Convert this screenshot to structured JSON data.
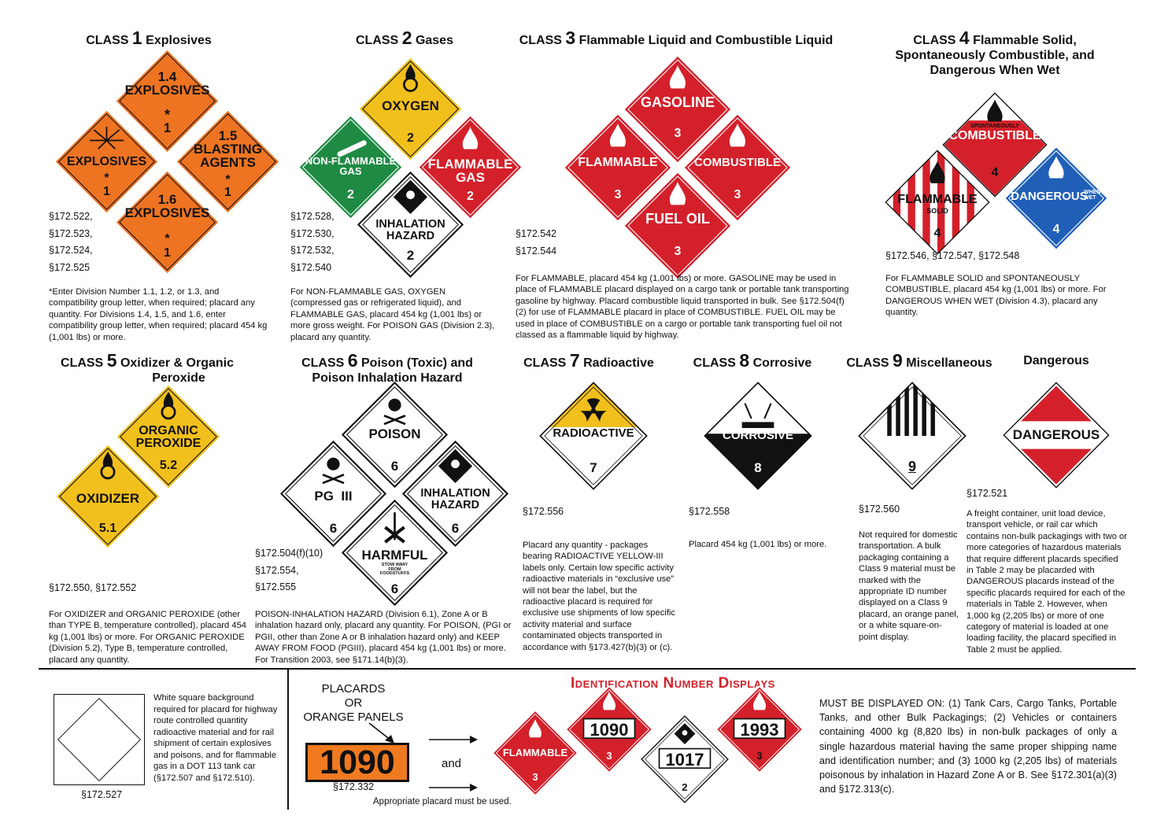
{
  "class1": {
    "title_a": "CLASS",
    "title_num": "1",
    "title_b": "Explosives",
    "placards": [
      {
        "label": "1.4\nEXPLOSIVES",
        "star": "*",
        "num": "1"
      },
      {
        "label": "EXPLOSIVES",
        "star": "*",
        "num": "1"
      },
      {
        "label": "1.5\nBLASTING\nAGENTS",
        "star": "*",
        "num": "1"
      },
      {
        "label": "1.6\nEXPLOSIVES",
        "star": "*",
        "num": "1"
      }
    ],
    "cites": [
      "§172.522,",
      "§172.523,",
      "§172.524,",
      "§172.525"
    ],
    "desc": "*Enter Division Number 1.1, 1.2, or 1.3, and compatibility group letter, when required; placard any quantity. For Divisions 1.4, 1.5, and 1.6, enter compatibility group letter, when required; placard 454 kg (1,001 lbs) or more."
  },
  "class2": {
    "title_a": "CLASS",
    "title_num": "2",
    "title_b": "Gases",
    "placards": [
      {
        "label": "OXYGEN",
        "num": "2"
      },
      {
        "label": "NON-FLAMMABLE\nGAS",
        "num": "2"
      },
      {
        "label": "FLAMMABLE\nGAS",
        "num": "2"
      },
      {
        "label": "INHALATION\nHAZARD",
        "num": "2"
      }
    ],
    "cites": [
      "§172.528,",
      "§172.530,",
      "§172.532,",
      "§172.540"
    ],
    "desc": "For NON-FLAMMABLE GAS, OXYGEN (compressed gas or refrigerated liquid), and FLAMMABLE GAS, placard 454 kg (1,001 lbs) or more gross weight. For POISON GAS (Division 2.3), placard any quantity."
  },
  "class3": {
    "title_a": "CLASS",
    "title_num": "3",
    "title_b": "Flammable Liquid and Combustible Liquid",
    "placards": [
      {
        "label": "GASOLINE",
        "num": "3"
      },
      {
        "label": "FLAMMABLE",
        "num": "3"
      },
      {
        "label": "COMBUSTIBLE",
        "num": "3"
      },
      {
        "label": "FUEL OIL",
        "num": "3"
      }
    ],
    "cites": [
      "§172.542",
      "§172.544"
    ],
    "desc": "For FLAMMABLE, placard 454 kg (1,001 lbs) or more. GASOLINE may be used in place of FLAMMABLE placard displayed on a cargo tank or portable tank transporting gasoline by highway. Placard combustible liquid transported in bulk. See §172.504(f)(2) for use of FLAMMABLE placard in place of COMBUSTIBLE. FUEL OIL may be used in place of COMBUSTIBLE on a cargo or portable tank transporting fuel oil not classed as a flammable liquid by highway."
  },
  "class4": {
    "title_a": "CLASS",
    "title_num": "4",
    "title_b": "Flammable Solid,",
    "title_c": "Spontaneously Combustible, and",
    "title_d": "Dangerous When Wet",
    "placards": [
      {
        "label_small": "SPONTANEOUSLY",
        "label": "COMBUSTIBLE",
        "num": "4"
      },
      {
        "label": "FLAMMABLE",
        "label_small": "SOLID",
        "num": "4"
      },
      {
        "label": "DANGEROUS",
        "label_small": "WHEN WET",
        "num": "4"
      }
    ],
    "cites": [
      "§172.546, §172.547, §172.548"
    ],
    "desc": "For FLAMMABLE SOLID and SPONTANEOUSLY COMBUSTIBLE, placard 454 kg (1,001 lbs) or more. For DANGEROUS WHEN WET (Division 4.3), placard any quantity."
  },
  "class5": {
    "title_a": "CLASS",
    "title_num": "5",
    "title_b": "Oxidizer & Organic",
    "title_c": "Peroxide",
    "placards": [
      {
        "label": "ORGANIC\nPEROXIDE",
        "num": "5.2"
      },
      {
        "label": "OXIDIZER",
        "num": "5.1"
      }
    ],
    "cites": [
      "§172.550, §172.552"
    ],
    "desc": "For OXIDIZER and ORGANIC PEROXIDE (other than TYPE B, temperature controlled), placard 454 kg (1,001 lbs) or more. For ORGANIC PEROXIDE (Division 5.2), Type B, temperature controlled, placard any quantity."
  },
  "class6": {
    "title_a": "CLASS",
    "title_num": "6",
    "title_b": "Poison (Toxic) and",
    "title_c": "Poison Inhalation Hazard",
    "placards": [
      {
        "label": "POISON",
        "num": "6"
      },
      {
        "label": "PG  III",
        "num": "6"
      },
      {
        "label": "INHALATION\nHAZARD",
        "num": "6"
      },
      {
        "label": "HARMFUL",
        "label_small": "STOW AWAY\nFROM\nFOODSTUFFS",
        "num": "6"
      }
    ],
    "cites": [
      "§172.504(f)(10)",
      "§172.554,",
      "§172.555"
    ],
    "desc": "POISON-INHALATION HAZARD (Division 6.1), Zone A or B inhalation hazard only, placard any quantity. For POISON, (PGI or PGII, other than Zone A or B inhalation hazard only) and KEEP AWAY FROM FOOD (PGIII), placard 454 kg (1,001 lbs) or more. For Transition 2003, see §171.14(b)(3)."
  },
  "class7": {
    "title_a": "CLASS",
    "title_num": "7",
    "title_b": "Radioactive",
    "placards": [
      {
        "label": "RADIOACTIVE",
        "num": "7"
      }
    ],
    "cites": [
      "§172.556"
    ],
    "desc": "Placard any quantity - packages bearing RADIOACTIVE YELLOW-III labels only. Certain low specific activity radioactive materials in “exclusive use” will not bear the label, but the radioactive placard is required for exclusive use shipments of low specific activity material and surface contaminated objects transported in accordance with §173.427(b)(3) or (c)."
  },
  "class8": {
    "title_a": "CLASS",
    "title_num": "8",
    "title_b": "Corrosive",
    "placards": [
      {
        "label": "CORROSIVE",
        "num": "8"
      }
    ],
    "cites": [
      "§172.558"
    ],
    "desc": "Placard 454 kg (1,001 lbs) or more."
  },
  "class9": {
    "title_a": "CLASS",
    "title_num": "9",
    "title_b": "Miscellaneous",
    "placards": [
      {
        "label": "",
        "num": "9"
      }
    ],
    "cites": [
      "§172.560"
    ],
    "desc": "Not required for domestic transportation. A bulk packaging containing a Class 9 material must be marked with the appropriate ID number displayed on a Class 9 placard, an orange panel, or a white square-on-point display."
  },
  "dangerous": {
    "title": "Dangerous",
    "placards": [
      {
        "label": "DANGEROUS"
      }
    ],
    "cites": [
      "§172.521"
    ],
    "desc": "A freight container, unit load device, transport vehicle, or rail car which contains non-bulk packagings with two or more categories of hazardous materials that require different placards specified in Table 2 may be placarded with DANGEROUS placards instead of the specific placards required for each of the materials in Table 2. However, when 1,000 kg (2,205 lbs) or more of one category of material is loaded at one loading facility, the placard specified in Table 2 must be applied."
  },
  "white_square": {
    "desc": "White square background required for placard for highway route controlled quantity radioactive material and for rail shipment of certain explosives and poisons, and for flammable gas in a DOT 113 tank car (§172.507 and §172.510).",
    "cite": "§172.527"
  },
  "id_numbers": {
    "title": "Identification Number Displays",
    "left_label": "PLACARDS\nOR\nORANGE PANELS",
    "panel_number": "1090",
    "panel_cite": "§172.332",
    "and_label": "and",
    "footnote": "Appropriate placard must be used.",
    "placards": [
      {
        "label": "FLAMMABLE",
        "num": "3"
      },
      {
        "id": "1090",
        "num": "3"
      },
      {
        "id": "1017",
        "num": "2"
      },
      {
        "id": "1993",
        "num": "3"
      }
    ],
    "desc": "MUST BE DISPLAYED ON: (1) Tank Cars, Cargo Tanks, Portable Tanks, and other Bulk Packagings; (2) Vehicles or containers containing 4000 kg (8,820 lbs) in non-bulk packages of only a single hazardous material having the same proper shipping name and identification number; and (3) 1000 kg (2,205 lbs) of materials poisonous by inhalation in Hazard Zone A or B. See §172.301(a)(3) and §172.313(c)."
  },
  "colors": {
    "orange": "#ee7422",
    "red": "#d4202a",
    "yellow": "#f2c01c",
    "green": "#1f8a44",
    "blue": "#1f5fb8",
    "black": "#111111",
    "panel_orange": "#f07a20"
  }
}
